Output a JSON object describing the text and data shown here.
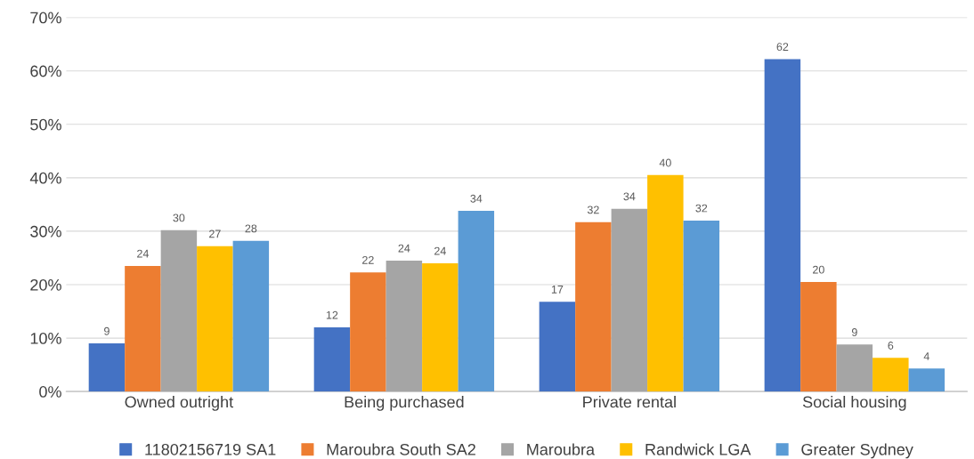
{
  "chart_data": {
    "type": "bar",
    "categories": [
      "Owned outright",
      "Being purchased",
      "Private rental",
      "Social housing"
    ],
    "series": [
      {
        "name": "11802156719 SA1",
        "color": "#4472c4",
        "values": [
          9.0,
          12.0,
          16.8,
          62.2
        ],
        "value_labels": [
          "9",
          "12",
          "17",
          "62"
        ]
      },
      {
        "name": "Maroubra South SA2",
        "color": "#ed7d31",
        "values": [
          23.5,
          22.3,
          31.7,
          20.5
        ],
        "value_labels": [
          "24",
          "22",
          "32",
          "20"
        ]
      },
      {
        "name": "Maroubra",
        "color": "#a5a5a5",
        "values": [
          30.2,
          24.5,
          34.2,
          8.8
        ],
        "value_labels": [
          "30",
          "24",
          "34",
          "9"
        ]
      },
      {
        "name": "Randwick LGA",
        "color": "#ffc000",
        "values": [
          27.2,
          24.0,
          40.5,
          6.3
        ],
        "value_labels": [
          "27",
          "24",
          "40",
          "6"
        ]
      },
      {
        "name": "Greater Sydney",
        "color": "#5b9bd5",
        "values": [
          28.2,
          33.8,
          32.0,
          4.3
        ],
        "value_labels": [
          "28",
          "34",
          "32",
          "4"
        ]
      }
    ],
    "ylim": [
      0,
      70
    ],
    "yticks": [
      {
        "value": 0,
        "label": "0%"
      },
      {
        "value": 10,
        "label": "10%"
      },
      {
        "value": 20,
        "label": "20%"
      },
      {
        "value": 30,
        "label": "30%"
      },
      {
        "value": 40,
        "label": "40%"
      },
      {
        "value": 50,
        "label": "50%"
      },
      {
        "value": 60,
        "label": "60%"
      },
      {
        "value": 70,
        "label": "70%"
      }
    ],
    "grid": "y",
    "legend": "bottom"
  }
}
